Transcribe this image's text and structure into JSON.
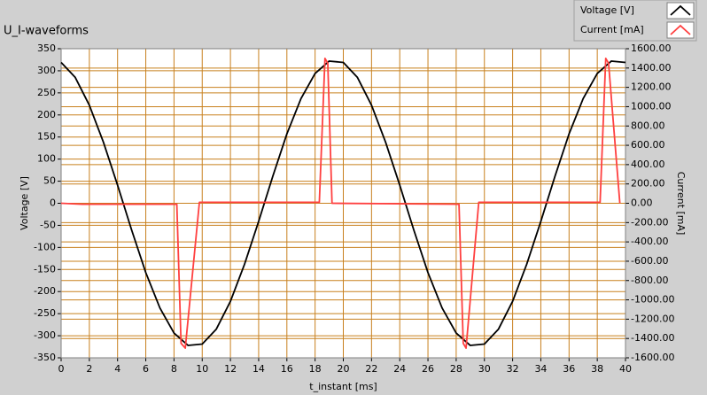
{
  "chart_data": {
    "type": "line",
    "title": "U_I-waveforms",
    "x_label": "t_instant [ms]",
    "y_label": "Voltage [V]",
    "y2_label": "Current [mA]",
    "x": [
      0,
      1,
      2,
      3,
      4,
      5,
      6,
      7,
      8,
      9,
      10,
      11,
      12,
      13,
      14,
      15,
      16,
      17,
      18,
      19,
      20,
      21,
      22,
      23,
      24,
      25,
      26,
      27,
      28,
      29,
      30,
      31,
      32,
      33,
      34,
      35,
      36,
      37,
      38,
      39,
      40
    ],
    "xlim": [
      0,
      40
    ],
    "xticks": [
      0,
      2,
      4,
      6,
      8,
      10,
      12,
      14,
      16,
      18,
      20,
      22,
      24,
      26,
      28,
      30,
      32,
      34,
      36,
      38,
      40
    ],
    "ylim": [
      -350,
      350
    ],
    "yticks": [
      -350,
      -300,
      -250,
      -200,
      -150,
      -100,
      -50,
      0,
      50,
      100,
      150,
      200,
      250,
      300,
      350
    ],
    "y2lim": [
      -1600,
      1600
    ],
    "y2ticks": [
      {
        "value": -1600,
        "label": "-1600.00"
      },
      {
        "value": -1400,
        "label": "-1400.00"
      },
      {
        "value": -1200,
        "label": "-1200.00"
      },
      {
        "value": -1000,
        "label": "-1000.00"
      },
      {
        "value": -800,
        "label": "-800.00"
      },
      {
        "value": -600,
        "label": "-600.00"
      },
      {
        "value": -400,
        "label": "-400.00"
      },
      {
        "value": -200,
        "label": "-200.00"
      },
      {
        "value": 0,
        "label": "0.00"
      },
      {
        "value": 200,
        "label": "200.00"
      },
      {
        "value": 400,
        "label": "400.00"
      },
      {
        "value": 600,
        "label": "600.00"
      },
      {
        "value": 800,
        "label": "800.00"
      },
      {
        "value": 1000,
        "label": "1000.00"
      },
      {
        "value": 1200,
        "label": "1200.00"
      },
      {
        "value": 1400,
        "label": "1400.00"
      },
      {
        "value": 1600,
        "label": "1600.00"
      }
    ],
    "grid": true,
    "grid_color": "#c8801e",
    "legend": "top-right",
    "series": [
      {
        "name": "Voltage [V]",
        "color": "#000000",
        "values": [
          319,
          285,
          222,
          138,
          41,
          -61,
          -157,
          -237,
          -294,
          -322,
          -319,
          -285,
          -222,
          -138,
          -41,
          61,
          157,
          237,
          294,
          322,
          319,
          285,
          222,
          138,
          41,
          -61,
          -157,
          -237,
          -294,
          -322,
          -319,
          -285,
          -222,
          -138,
          -41,
          61,
          157,
          237,
          294,
          322,
          319
        ]
      },
      {
        "name": "Current [mA]",
        "color": "#ff4040",
        "axis": "y2",
        "x": [
          0,
          1.5,
          8.2,
          8.5,
          8.8,
          9.8,
          18.3,
          18.7,
          18.9,
          19.2,
          28.2,
          28.5,
          28.7,
          29.6,
          38.2,
          38.6,
          38.8,
          39.6
        ],
        "values": [
          0,
          -10,
          -10,
          -1450,
          -1500,
          10,
          10,
          1500,
          1450,
          0,
          -10,
          -1450,
          -1500,
          10,
          10,
          1500,
          1450,
          0
        ]
      }
    ]
  }
}
